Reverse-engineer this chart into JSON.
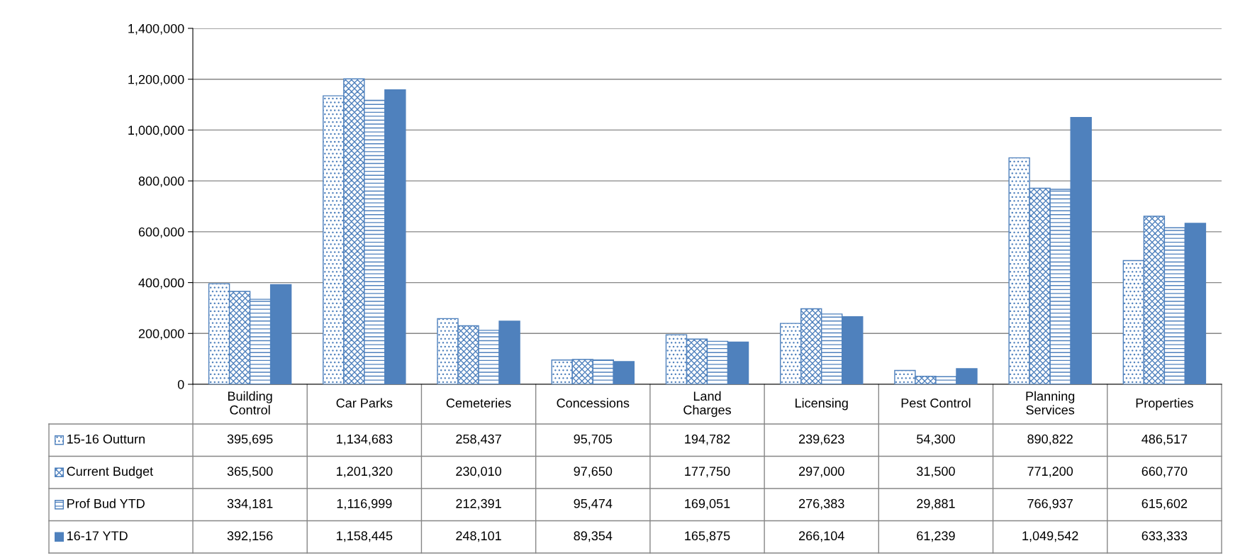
{
  "chart_data": {
    "type": "bar",
    "categories": [
      "Building\nControl",
      "Car Parks",
      "Cemeteries",
      "Concessions",
      "Land\nCharges",
      "Licensing",
      "Pest Control",
      "Planning\nServices",
      "Properties"
    ],
    "series": [
      {
        "name": "15-16 Outturn",
        "color": "#4f81bd",
        "values": [
          395695,
          1134683,
          258437,
          95705,
          194782,
          239623,
          54300,
          890822,
          486517
        ],
        "value_labels": [
          "395,695",
          "1,134,683",
          "258,437",
          "95,705",
          "194,782",
          "239,623",
          "54,300",
          "890,822",
          "486,517"
        ]
      },
      {
        "name": "Current Budget",
        "color": "#4f81bd",
        "values": [
          365500,
          1201320,
          230010,
          97650,
          177750,
          297000,
          31500,
          771200,
          660770
        ],
        "value_labels": [
          "365,500",
          "1,201,320",
          "230,010",
          "97,650",
          "177,750",
          "297,000",
          "31,500",
          "771,200",
          "660,770"
        ]
      },
      {
        "name": "Prof Bud YTD",
        "color": "#4f81bd",
        "values": [
          334181,
          1116999,
          212391,
          95474,
          169051,
          276383,
          29881,
          766937,
          615602
        ],
        "value_labels": [
          "334,181",
          "1,116,999",
          "212,391",
          "95,474",
          "169,051",
          "276,383",
          "29,881",
          "766,937",
          "615,602"
        ]
      },
      {
        "name": "16-17 YTD",
        "color": "#4f81bd",
        "values": [
          392156,
          1158445,
          248101,
          89354,
          165875,
          266104,
          61239,
          1049542,
          633333
        ],
        "value_labels": [
          "392,156",
          "1,158,445",
          "248,101",
          "89,354",
          "165,875",
          "266,104",
          "61,239",
          "1,049,542",
          "633,333"
        ]
      }
    ],
    "ylim": [
      0,
      1400000
    ],
    "yticks": [
      {
        "value": 0,
        "label": "0"
      },
      {
        "value": 200000,
        "label": "200,000"
      },
      {
        "value": 400000,
        "label": "400,000"
      },
      {
        "value": 600000,
        "label": "600,000"
      },
      {
        "value": 800000,
        "label": "800,000"
      },
      {
        "value": 1000000,
        "label": "1,000,000"
      },
      {
        "value": 1200000,
        "label": "1,200,000"
      },
      {
        "value": 1400000,
        "label": "1,400,000"
      }
    ],
    "grid": "y",
    "legend": "bottom"
  }
}
